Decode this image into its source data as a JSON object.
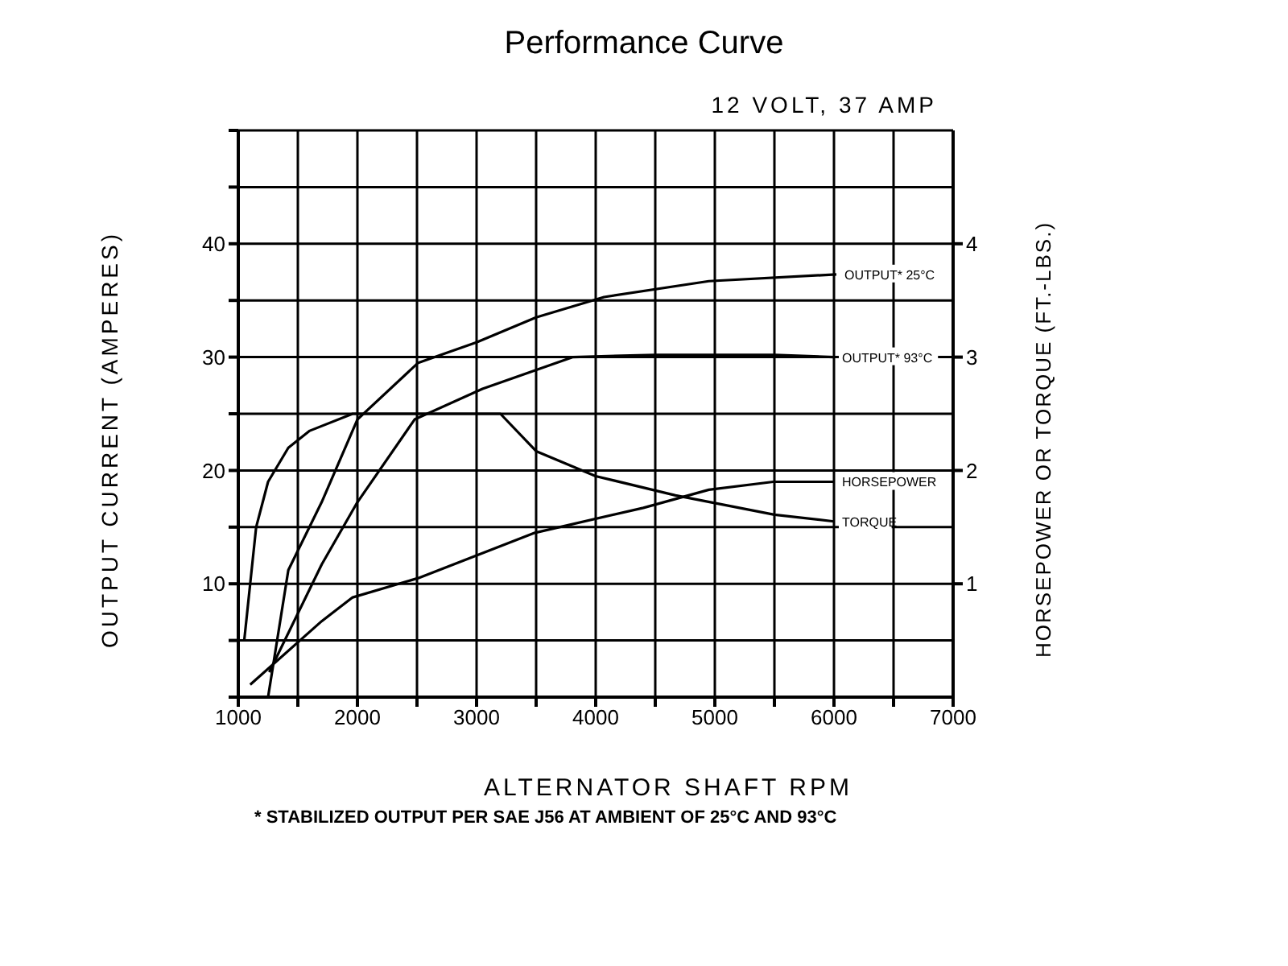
{
  "chart_data": {
    "type": "line",
    "title": "Performance Curve",
    "subtitle": "12 VOLT, 37 AMP",
    "xlabel": "ALTERNATOR SHAFT RPM",
    "ylabel": "OUTPUT CURRENT (AMPERES)",
    "y2label": "HORSEPOWER OR TORQUE (FT.-LBS.)",
    "annotations": [
      "* STABILIZED OUTPUT PER SAE J56 AT AMBIENT OF 25°C AND 93°C"
    ],
    "xlim": [
      1000,
      7000
    ],
    "xticks": [
      1000,
      {
        "value": 1500,
        "label": null
      },
      2000,
      {
        "value": 2500,
        "label": null
      },
      3000,
      {
        "value": 3500,
        "label": null
      },
      4000,
      {
        "value": 4500,
        "label": null
      },
      5000,
      {
        "value": 5500,
        "label": null
      },
      6000,
      {
        "value": 6500,
        "label": null
      },
      7000
    ],
    "ylim": [
      0,
      50
    ],
    "yticks": [
      {
        "value": 0,
        "label": null
      },
      {
        "value": 5,
        "label": null
      },
      10,
      {
        "value": 15,
        "label": null
      },
      20,
      {
        "value": 25,
        "label": null
      },
      30,
      {
        "value": 35,
        "label": null
      },
      40,
      {
        "value": 45,
        "label": null
      },
      {
        "value": 50,
        "label": null
      }
    ],
    "y2lim": [
      0,
      5
    ],
    "y2ticks": [
      1,
      2,
      3,
      4
    ],
    "grid": true,
    "marker": "none",
    "line_style": "solid",
    "series": [
      {
        "name": "OUTPUT* 25°C",
        "color": "#000000",
        "x": [
          1250,
          1420,
          1700,
          2000,
          2510,
          3000,
          3500,
          4070,
          4950,
          6020
        ],
        "values": [
          0,
          11.2,
          17.2,
          24.5,
          29.5,
          31.3,
          33.5,
          35.3,
          36.7,
          37.3
        ]
      },
      {
        "name": "OUTPUT* 93°C",
        "color": "#000000",
        "x": [
          1260,
          1700,
          2000,
          2480,
          3050,
          3810,
          4500,
          5500,
          6000
        ],
        "values": [
          2.2,
          11.7,
          17.2,
          24.5,
          27.2,
          30,
          30.2,
          30.2,
          30
        ]
      },
      {
        "name": "HORSEPOWER",
        "color": "#000000",
        "axis": "y2",
        "x": [
          1100,
          1700,
          1960,
          2510,
          3490,
          4400,
          4950,
          5490,
          6000
        ],
        "values": [
          0.11,
          0.67,
          0.88,
          1.05,
          1.45,
          1.67,
          1.83,
          1.9,
          1.9
        ]
      },
      {
        "name": "TORQUE",
        "color": "#000000",
        "axis": "y2",
        "x": [
          1050,
          1100,
          1150,
          1250,
          1420,
          1600,
          1960,
          3200,
          3500,
          4000,
          4670,
          5500,
          6000
        ],
        "values": [
          0.5,
          1.0,
          1.5,
          1.9,
          2.2,
          2.35,
          2.5,
          2.5,
          2.17,
          1.95,
          1.78,
          1.61,
          1.55
        ]
      }
    ]
  }
}
